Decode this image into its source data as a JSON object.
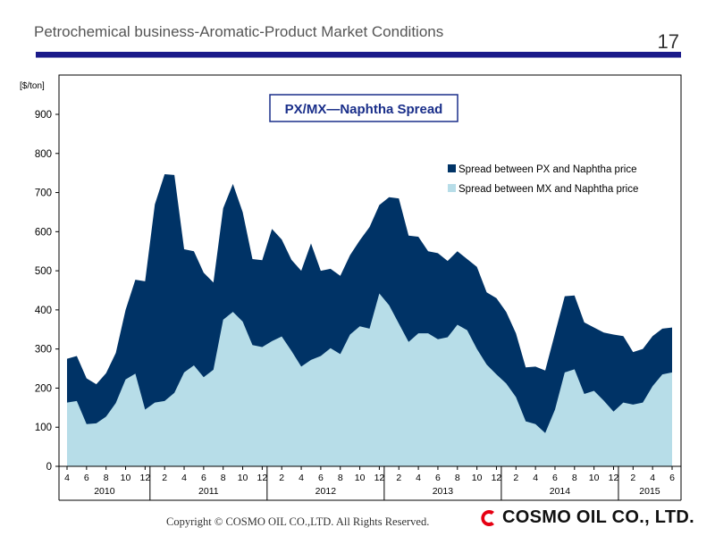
{
  "slide": {
    "title": "Petrochemical business-Aromatic-Product Market Conditions",
    "page_number": "17"
  },
  "footer": {
    "copyright": "Copyright © COSMO OIL CO.,LTD. All Rights Reserved.",
    "logo_text": "COSMO OIL CO., LTD."
  },
  "colors": {
    "px_series": "#003366",
    "mx_series": "#b7dde8",
    "title_rule": "#1a1a8a",
    "logo_red": "#e60012"
  },
  "chart_data": {
    "type": "area",
    "title": "PX/MX―Naphtha Spread",
    "ylabel": "[$/ton]",
    "ylim": [
      0,
      950
    ],
    "yticks": [
      0,
      100,
      200,
      300,
      400,
      500,
      600,
      700,
      800,
      900
    ],
    "grid": false,
    "legend_position": "top-right",
    "x": [
      "2010-04",
      "2010-05",
      "2010-06",
      "2010-07",
      "2010-08",
      "2010-09",
      "2010-10",
      "2010-11",
      "2010-12",
      "2011-01",
      "2011-02",
      "2011-03",
      "2011-04",
      "2011-05",
      "2011-06",
      "2011-07",
      "2011-08",
      "2011-09",
      "2011-10",
      "2011-11",
      "2011-12",
      "2012-01",
      "2012-02",
      "2012-03",
      "2012-04",
      "2012-05",
      "2012-06",
      "2012-07",
      "2012-08",
      "2012-09",
      "2012-10",
      "2012-11",
      "2012-12",
      "2013-01",
      "2013-02",
      "2013-03",
      "2013-04",
      "2013-05",
      "2013-06",
      "2013-07",
      "2013-08",
      "2013-09",
      "2013-10",
      "2013-11",
      "2013-12",
      "2014-01",
      "2014-02",
      "2014-03",
      "2014-04",
      "2014-05",
      "2014-06",
      "2014-07",
      "2014-08",
      "2014-09",
      "2014-10",
      "2014-11",
      "2014-12",
      "2015-01",
      "2015-02",
      "2015-03",
      "2015-04",
      "2015-05",
      "2015-06"
    ],
    "month_tick_labels": [
      {
        "index": 0,
        "label": "4"
      },
      {
        "index": 2,
        "label": "6"
      },
      {
        "index": 4,
        "label": "8"
      },
      {
        "index": 6,
        "label": "10"
      },
      {
        "index": 8,
        "label": "12"
      },
      {
        "index": 10,
        "label": "2"
      },
      {
        "index": 12,
        "label": "4"
      },
      {
        "index": 14,
        "label": "6"
      },
      {
        "index": 16,
        "label": "8"
      },
      {
        "index": 18,
        "label": "10"
      },
      {
        "index": 20,
        "label": "12"
      },
      {
        "index": 22,
        "label": "2"
      },
      {
        "index": 24,
        "label": "4"
      },
      {
        "index": 26,
        "label": "6"
      },
      {
        "index": 28,
        "label": "8"
      },
      {
        "index": 30,
        "label": "10"
      },
      {
        "index": 32,
        "label": "12"
      },
      {
        "index": 34,
        "label": "2"
      },
      {
        "index": 36,
        "label": "4"
      },
      {
        "index": 38,
        "label": "6"
      },
      {
        "index": 40,
        "label": "8"
      },
      {
        "index": 42,
        "label": "10"
      },
      {
        "index": 44,
        "label": "12"
      },
      {
        "index": 46,
        "label": "2"
      },
      {
        "index": 48,
        "label": "4"
      },
      {
        "index": 50,
        "label": "6"
      },
      {
        "index": 52,
        "label": "8"
      },
      {
        "index": 54,
        "label": "10"
      },
      {
        "index": 56,
        "label": "12"
      },
      {
        "index": 58,
        "label": "2"
      },
      {
        "index": 60,
        "label": "4"
      },
      {
        "index": 62,
        "label": "6"
      }
    ],
    "year_groups": [
      {
        "label": "2010",
        "start": 0,
        "end": 8
      },
      {
        "label": "2011",
        "start": 9,
        "end": 20
      },
      {
        "label": "2012",
        "start": 21,
        "end": 32
      },
      {
        "label": "2013",
        "start": 33,
        "end": 44
      },
      {
        "label": "2014",
        "start": 45,
        "end": 56
      },
      {
        "label": "2015",
        "start": 57,
        "end": 62
      }
    ],
    "series": [
      {
        "name": "Spread between PX and Naphtha price",
        "color": "#003366",
        "values": [
          275,
          282,
          225,
          210,
          238,
          290,
          400,
          477,
          473,
          670,
          747,
          745,
          555,
          550,
          495,
          470,
          660,
          722,
          650,
          530,
          527,
          607,
          580,
          528,
          500,
          570,
          500,
          505,
          487,
          540,
          578,
          612,
          668,
          688,
          685,
          590,
          587,
          550,
          545,
          525,
          550,
          530,
          510,
          445,
          430,
          395,
          340,
          253,
          255,
          245,
          340,
          435,
          437,
          368,
          355,
          342,
          337,
          333,
          292,
          300,
          333,
          352,
          355
        ]
      },
      {
        "name": "Spread between MX and Naphtha price",
        "color": "#b7dde8",
        "values": [
          163,
          167,
          108,
          110,
          127,
          162,
          222,
          237,
          145,
          163,
          167,
          188,
          240,
          258,
          228,
          247,
          375,
          395,
          370,
          310,
          305,
          320,
          332,
          295,
          255,
          272,
          282,
          302,
          287,
          337,
          358,
          352,
          442,
          412,
          365,
          318,
          340,
          340,
          325,
          330,
          362,
          348,
          300,
          260,
          235,
          212,
          177,
          115,
          108,
          85,
          145,
          240,
          248,
          185,
          193,
          168,
          140,
          163,
          158,
          163,
          205,
          235,
          240
        ]
      }
    ]
  }
}
